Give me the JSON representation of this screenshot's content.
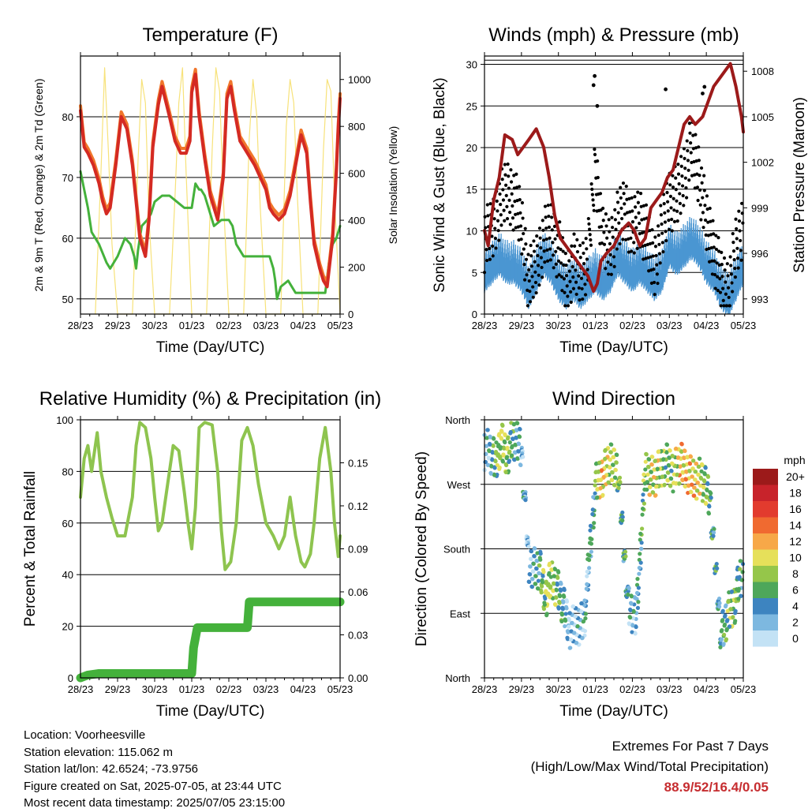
{
  "chart_data": [
    {
      "type": "line",
      "title": "Temperature (F)",
      "xlabel": "Time (Day/UTC)",
      "ylabel": "2m & 9m T (Red, Orange) & 2m Td (Green)",
      "ylabel_right": "Solar Insolation (Yellow)",
      "x_ticks": [
        "28/23",
        "29/23",
        "30/23",
        "01/23",
        "02/23",
        "03/23",
        "04/23",
        "05/23"
      ],
      "ylim": [
        47.5,
        90
      ],
      "y_ticks": [
        50,
        60,
        70,
        80
      ],
      "ylim_right": [
        0,
        1100
      ],
      "y_ticks_right": [
        0,
        200,
        400,
        600,
        800,
        1000
      ],
      "colors": {
        "t2m": "#d42a23",
        "t9m": "#f0762b",
        "td": "#44b13b",
        "solar": "#f7e27a"
      },
      "series": [
        {
          "key": "t2m",
          "x": [
            0,
            0.05,
            0.1,
            0.2,
            0.35,
            0.5,
            0.6,
            0.7,
            0.8,
            0.95,
            1.1,
            1.25,
            1.4,
            1.5,
            1.6,
            1.75,
            1.85,
            1.95,
            2.1,
            2.2,
            2.4,
            2.55,
            2.7,
            2.85,
            2.95,
            3.0,
            3.1,
            3.2,
            3.35,
            3.5,
            3.7,
            3.85,
            3.95,
            4.05,
            4.15,
            4.3,
            4.5,
            4.7,
            4.85,
            5.0,
            5.1,
            5.2,
            5.35,
            5.5,
            5.65,
            5.8,
            5.95,
            6.1,
            6.2,
            6.3,
            6.45,
            6.55,
            6.65,
            6.8,
            6.9,
            6.95,
            7.0
          ],
          "y": [
            81,
            78,
            75,
            74,
            72,
            69,
            66,
            64,
            65,
            72,
            80,
            78,
            72,
            66,
            60,
            57,
            63,
            75,
            82,
            85,
            80,
            76,
            74,
            74,
            76,
            84,
            87,
            80,
            73,
            67,
            63,
            70,
            83,
            85,
            81,
            76,
            74,
            72,
            70,
            68,
            65,
            64,
            63,
            64,
            67,
            72,
            77,
            74,
            66,
            59,
            55,
            53,
            52,
            60,
            71,
            78,
            83
          ]
        },
        {
          "key": "td",
          "x": [
            0,
            0.1,
            0.2,
            0.3,
            0.4,
            0.5,
            0.7,
            0.8,
            0.9,
            1.0,
            1.2,
            1.35,
            1.45,
            1.5,
            1.55,
            1.65,
            1.8,
            1.9,
            2.0,
            2.2,
            2.4,
            2.6,
            2.8,
            3.0,
            3.1,
            3.2,
            3.25,
            3.35,
            3.5,
            3.6,
            3.8,
            4.0,
            4.1,
            4.2,
            4.3,
            4.4,
            4.6,
            4.8,
            5.0,
            5.1,
            5.2,
            5.25,
            5.3,
            5.4,
            5.6,
            5.8,
            6.0,
            6.2,
            6.4,
            6.6,
            6.7,
            6.8,
            6.9,
            7.0
          ],
          "y": [
            71,
            68,
            65,
            61,
            60,
            59,
            56,
            55,
            56,
            57,
            60,
            59,
            57,
            55,
            58,
            62,
            63,
            64,
            66,
            67,
            67,
            66,
            65,
            65,
            69,
            68,
            68,
            67,
            64,
            62,
            63,
            63,
            62,
            59,
            58,
            57,
            57,
            57,
            57,
            57,
            55,
            53,
            50,
            52,
            53,
            51,
            51,
            51,
            51,
            51,
            56,
            59,
            60,
            62
          ]
        },
        {
          "key": "solar",
          "x": [
            0.4,
            0.55,
            0.65,
            0.75,
            0.85,
            1.0,
            1.4,
            1.55,
            1.65,
            1.75,
            1.85,
            2.0,
            2.4,
            2.55,
            2.65,
            2.75,
            2.85,
            3.0,
            3.4,
            3.55,
            3.65,
            3.75,
            3.85,
            4.0,
            4.4,
            4.55,
            4.65,
            4.75,
            4.85,
            5.0,
            5.4,
            5.55,
            5.65,
            5.75,
            5.85,
            6.0,
            6.4,
            6.55,
            6.65,
            6.75,
            6.85,
            7.0
          ],
          "y": [
            0,
            600,
            1050,
            700,
            300,
            0,
            0,
            650,
            1000,
            900,
            400,
            0,
            0,
            500,
            900,
            1050,
            600,
            0,
            0,
            700,
            1050,
            950,
            500,
            0,
            0,
            750,
            1000,
            850,
            450,
            0,
            0,
            800,
            1000,
            900,
            500,
            0,
            0,
            700,
            1000,
            950,
            500,
            0
          ]
        }
      ]
    },
    {
      "type": "scatter",
      "title": "Winds (mph) & Pressure (mb)",
      "xlabel": "Time (Day/UTC)",
      "ylabel": "Sonic Wind & Gust (Blue, Black)",
      "ylabel_right": "Station Pressure (Maroon)",
      "x_ticks": [
        "28/23",
        "29/23",
        "30/23",
        "01/23",
        "02/23",
        "03/23",
        "04/23",
        "05/23"
      ],
      "ylim": [
        0,
        31
      ],
      "y_ticks": [
        0,
        5,
        10,
        15,
        20,
        25,
        30
      ],
      "ylim_right": [
        992,
        1009
      ],
      "y_ticks_right": [
        993,
        996,
        999,
        1002,
        1005,
        1008
      ],
      "colors": {
        "wind": "#4b96d2",
        "gust": "#000000",
        "pressure": "#9c1a1a"
      },
      "series": [
        {
          "key": "wind",
          "x": [
            0,
            0.2,
            0.4,
            0.6,
            0.8,
            1.0,
            1.2,
            1.4,
            1.6,
            1.8,
            2.0,
            2.2,
            2.4,
            2.6,
            2.8,
            3.0,
            3.2,
            3.4,
            3.6,
            3.8,
            4.0,
            4.2,
            4.4,
            4.6,
            4.8,
            5.0,
            5.2,
            5.4,
            5.6,
            5.8,
            6.0,
            6.2,
            6.4,
            6.6,
            6.8,
            7.0
          ],
          "y": [
            5,
            6,
            7,
            6,
            6,
            5,
            3,
            5,
            7,
            6,
            4,
            3,
            4,
            3,
            4,
            5,
            4,
            5,
            7,
            6,
            5,
            6,
            5,
            4,
            5,
            8,
            7,
            8,
            9,
            8,
            6,
            5,
            3,
            2,
            4,
            6
          ]
        },
        {
          "key": "gust",
          "x": [
            0,
            0.2,
            0.4,
            0.6,
            0.8,
            1.0,
            1.2,
            1.4,
            1.6,
            1.8,
            2.0,
            2.2,
            2.4,
            2.6,
            2.8,
            3.0,
            3.2,
            3.4,
            3.6,
            3.8,
            4.0,
            4.2,
            4.4,
            4.6,
            4.8,
            5.0,
            5.2,
            5.4,
            5.6,
            5.8,
            6.0,
            6.2,
            6.4,
            6.6,
            6.8,
            7.0
          ],
          "y": [
            9,
            10,
            13,
            15,
            14,
            11,
            4,
            6,
            9,
            10,
            8,
            4,
            6,
            5,
            7,
            18,
            9,
            8,
            11,
            13,
            10,
            12,
            9,
            6,
            10,
            14,
            14,
            17,
            20,
            17,
            11,
            8,
            4,
            3,
            8,
            11
          ]
        },
        {
          "key": "pressure",
          "x": [
            0,
            0.1,
            0.25,
            0.4,
            0.55,
            0.75,
            0.9,
            1.05,
            1.2,
            1.4,
            1.6,
            1.75,
            1.9,
            2.05,
            2.2,
            2.35,
            2.5,
            2.65,
            2.8,
            2.95,
            3.05,
            3.15,
            3.3,
            3.5,
            3.7,
            3.9,
            4.05,
            4.2,
            4.35,
            4.5,
            4.65,
            4.8,
            4.95,
            5.1,
            5.25,
            5.4,
            5.55,
            5.7,
            5.9,
            6.05,
            6.2,
            6.35,
            6.5,
            6.65,
            6.8,
            6.95,
            7.0
          ],
          "y": [
            997.5,
            996.5,
            999.5,
            1001,
            1003.8,
            1003.5,
            1002.5,
            1003,
            1003.5,
            1004.2,
            1003,
            1001,
            998.5,
            997,
            996.5,
            996,
            995.5,
            995,
            994.5,
            993.5,
            994,
            995.5,
            996,
            996.5,
            997.5,
            998,
            997.5,
            996.5,
            997,
            999,
            999.5,
            1000,
            1001,
            1001.5,
            1003,
            1004.5,
            1005,
            1004.5,
            1005,
            1006,
            1007,
            1007.5,
            1008,
            1008.5,
            1007,
            1005,
            1004
          ]
        }
      ]
    },
    {
      "type": "line",
      "title": "Relative Humidity (%) & Precipitation (in)",
      "xlabel": "Time (Day/UTC)",
      "ylabel": "Percent & Total Rainfall",
      "x_ticks": [
        "28/23",
        "29/23",
        "30/23",
        "01/23",
        "02/23",
        "03/23",
        "04/23",
        "05/23"
      ],
      "ylim": [
        0,
        100
      ],
      "y_ticks": [
        0,
        20,
        40,
        60,
        80,
        100
      ],
      "ylim_right": [
        0,
        0.18
      ],
      "y_ticks_right": [
        "0.00",
        "0.03",
        "0.06",
        "0.09",
        "0.12",
        "0.15"
      ],
      "colors": {
        "rh": "#8ec44f",
        "precip": "#44b13b"
      },
      "series": [
        {
          "key": "rh",
          "x": [
            0,
            0.1,
            0.2,
            0.3,
            0.45,
            0.55,
            0.7,
            0.85,
            1.0,
            1.2,
            1.4,
            1.5,
            1.6,
            1.75,
            1.9,
            2.0,
            2.1,
            2.2,
            2.35,
            2.5,
            2.65,
            2.8,
            2.9,
            3.0,
            3.1,
            3.2,
            3.35,
            3.55,
            3.7,
            3.8,
            3.9,
            4.05,
            4.2,
            4.35,
            4.5,
            4.65,
            4.8,
            5.0,
            5.2,
            5.35,
            5.5,
            5.65,
            5.8,
            5.95,
            6.05,
            6.2,
            6.3,
            6.45,
            6.6,
            6.75,
            6.85,
            6.95,
            7.0
          ],
          "y": [
            70,
            85,
            90,
            80,
            95,
            80,
            70,
            62,
            55,
            55,
            70,
            90,
            99,
            97,
            85,
            70,
            57,
            60,
            75,
            90,
            88,
            72,
            60,
            50,
            66,
            97,
            99,
            98,
            80,
            57,
            42,
            45,
            60,
            92,
            97,
            90,
            75,
            60,
            55,
            50,
            55,
            70,
            55,
            45,
            43,
            48,
            60,
            85,
            97,
            80,
            60,
            47,
            55
          ]
        },
        {
          "key": "precip",
          "x": [
            0,
            0.2,
            0.5,
            1.0,
            1.5,
            2.0,
            2.5,
            3.0,
            3.05,
            3.1,
            3.15,
            3.5,
            4.0,
            4.5,
            4.55,
            4.6,
            5.0,
            5.5,
            6.0,
            6.5,
            7.0
          ],
          "y": [
            0,
            0.002,
            0.003,
            0.003,
            0.003,
            0.003,
            0.003,
            0.003,
            0.021,
            0.028,
            0.035,
            0.035,
            0.035,
            0.035,
            0.053,
            0.053,
            0.053,
            0.053,
            0.053,
            0.053,
            0.053
          ]
        }
      ]
    },
    {
      "type": "scatter",
      "title": "Wind Direction",
      "xlabel": "Time (Day/UTC)",
      "ylabel": "Direction (Colored By Speed)",
      "x_ticks": [
        "28/23",
        "29/23",
        "30/23",
        "01/23",
        "02/23",
        "03/23",
        "04/23",
        "05/23"
      ],
      "ylim": [
        0,
        360
      ],
      "y_ticks": [
        "North",
        "East",
        "South",
        "West",
        "North"
      ],
      "legend": {
        "title": "mph",
        "labels": [
          "20+",
          "18",
          "16",
          "14",
          "12",
          "10",
          "8",
          "6",
          "4",
          "2",
          "0"
        ],
        "colors": [
          "#9c1a1a",
          "#c8232b",
          "#e23b2e",
          "#f06a30",
          "#f7a848",
          "#e6e05a",
          "#95c64a",
          "#4ea75a",
          "#3d84c0",
          "#7db8e0",
          "#c3e2f5"
        ]
      },
      "series": [
        {
          "name": "direction",
          "x": [
            0.1,
            0.2,
            0.3,
            0.45,
            0.6,
            0.75,
            1.0,
            1.2,
            1.5,
            1.65,
            1.8,
            1.95,
            2.3,
            2.7,
            3.0,
            3.15,
            3.35,
            3.6,
            3.9,
            4.1,
            4.35,
            4.6,
            4.9,
            5.1,
            5.3,
            5.6,
            5.85,
            6.1,
            6.4,
            6.6,
            6.75,
            6.9
          ],
          "y": [
            320,
            310,
            300,
            330,
            310,
            335,
            320,
            160,
            150,
            110,
            140,
            130,
            70,
            80,
            270,
            280,
            300,
            290,
            100,
            80,
            290,
            280,
            300,
            290,
            300,
            280,
            280,
            250,
            60,
            90,
            100,
            140
          ],
          "speed": [
            3,
            5,
            7,
            9,
            8,
            6,
            3,
            2,
            6,
            8,
            9,
            7,
            2,
            3,
            6,
            12,
            9,
            8,
            4,
            3,
            8,
            10,
            7,
            8,
            11,
            12,
            9,
            6,
            4,
            7,
            8,
            5
          ]
        }
      ]
    }
  ],
  "info": {
    "location": "Location: Voorheesville",
    "elevation": "Station elevation: 115.062 m",
    "latlon": "Station lat/lon: 42.6524; -73.9756",
    "created": "Figure created on Sat, 2025-07-05, at 23:44 UTC",
    "recent": "Most recent data timestamp: 2025/07/05 23:15:00"
  },
  "extremes": {
    "title": "Extremes For Past 7 Days",
    "subtitle": "(High/Low/Max Wind/Total Precipitation)",
    "values": "88.9/52/16.4/0.05"
  }
}
